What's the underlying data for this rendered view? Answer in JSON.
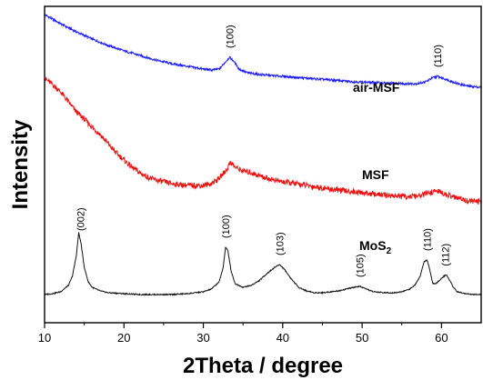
{
  "chart_data": {
    "type": "line",
    "title": "",
    "xlabel": "2Theta / degree",
    "ylabel": "Intensity",
    "xlim": [
      10,
      65
    ],
    "x_ticks": [
      "10",
      "20",
      "30",
      "40",
      "50",
      "60"
    ],
    "y_ticks_shown": false,
    "grid": false,
    "legend": "none (series labelled directly on plot)",
    "series": [
      {
        "name": "air-MSF",
        "color": "#1a1aff",
        "offset": 2.25,
        "x": [
          10,
          12,
          14,
          16,
          18,
          20,
          22,
          24,
          26,
          28,
          30,
          31,
          32,
          32.8,
          33.3,
          33.8,
          34.5,
          35.5,
          37,
          40,
          43,
          46,
          49,
          52,
          55,
          57,
          58,
          58.8,
          59.5,
          60.5,
          62,
          63.5,
          65
        ],
        "y": [
          0.85,
          0.75,
          0.66,
          0.58,
          0.51,
          0.45,
          0.4,
          0.35,
          0.31,
          0.28,
          0.25,
          0.24,
          0.25,
          0.33,
          0.38,
          0.34,
          0.25,
          0.21,
          0.19,
          0.17,
          0.15,
          0.13,
          0.11,
          0.1,
          0.09,
          0.09,
          0.11,
          0.15,
          0.17,
          0.14,
          0.09,
          0.06,
          0.05
        ]
      },
      {
        "name": "MSF",
        "color": "#ee1111",
        "offset": 1.0,
        "x": [
          10,
          11,
          12,
          13,
          14,
          15,
          16,
          17,
          18,
          19,
          20,
          21,
          22,
          23,
          24,
          25,
          26,
          27,
          28,
          29,
          30,
          31,
          32,
          33,
          33.4,
          34,
          35,
          36,
          38,
          40,
          43,
          46,
          49,
          52,
          55,
          57,
          58.5,
          59.5,
          60.5,
          62,
          63.5,
          65
        ],
        "y": [
          1.4,
          1.33,
          1.25,
          1.14,
          1.03,
          0.95,
          0.86,
          0.78,
          0.68,
          0.58,
          0.5,
          0.42,
          0.36,
          0.31,
          0.28,
          0.26,
          0.24,
          0.23,
          0.22,
          0.22,
          0.22,
          0.24,
          0.3,
          0.4,
          0.48,
          0.42,
          0.38,
          0.36,
          0.3,
          0.26,
          0.22,
          0.18,
          0.15,
          0.12,
          0.1,
          0.1,
          0.14,
          0.16,
          0.12,
          0.08,
          0.05,
          0.04
        ]
      },
      {
        "name": "MoS2",
        "color": "#111111",
        "offset": 0,
        "x": [
          10,
          11,
          12,
          13,
          13.5,
          14,
          14.3,
          14.6,
          15,
          15.5,
          16,
          17,
          18,
          20,
          22,
          24,
          26,
          28,
          30,
          31,
          32,
          32.5,
          32.8,
          33.1,
          33.5,
          34,
          35,
          36,
          37,
          38,
          39,
          39.6,
          40.2,
          41,
          42,
          43,
          44,
          45,
          46,
          47,
          48,
          49,
          49.7,
          50.5,
          51.5,
          53,
          54,
          55,
          56,
          56.7,
          57.3,
          57.8,
          58.2,
          58.5,
          58.9,
          59.3,
          59.8,
          60.3,
          60.6,
          61,
          61.5,
          62,
          63,
          64,
          65
        ],
        "y": [
          0.02,
          0.03,
          0.05,
          0.12,
          0.22,
          0.45,
          0.7,
          0.58,
          0.32,
          0.16,
          0.1,
          0.06,
          0.04,
          0.03,
          0.02,
          0.02,
          0.02,
          0.03,
          0.05,
          0.08,
          0.16,
          0.32,
          0.54,
          0.5,
          0.28,
          0.14,
          0.1,
          0.12,
          0.17,
          0.25,
          0.32,
          0.35,
          0.3,
          0.2,
          0.1,
          0.06,
          0.04,
          0.04,
          0.05,
          0.06,
          0.08,
          0.1,
          0.11,
          0.08,
          0.05,
          0.04,
          0.04,
          0.05,
          0.08,
          0.13,
          0.22,
          0.38,
          0.4,
          0.3,
          0.14,
          0.14,
          0.18,
          0.22,
          0.24,
          0.18,
          0.1,
          0.05,
          0.03,
          0.02,
          0.02
        ]
      }
    ],
    "annotations": [
      {
        "text": "(002)",
        "series": "MoS2",
        "x": 14.5
      },
      {
        "text": "(100)",
        "series": "MoS2",
        "x": 32.8
      },
      {
        "text": "(103)",
        "series": "MoS2",
        "x": 39.6
      },
      {
        "text": "(105)",
        "series": "MoS2",
        "x": 49.7
      },
      {
        "text": "(110)",
        "series": "MoS2",
        "x": 58.2
      },
      {
        "text": "(112)",
        "series": "MoS2",
        "x": 60.5
      },
      {
        "text": "(100)",
        "series": "air-MSF",
        "x": 33.3
      },
      {
        "text": "(110)",
        "series": "air-MSF",
        "x": 59.5
      }
    ],
    "series_labels": [
      {
        "main": "air-MSF",
        "sub": ""
      },
      {
        "main": "MSF",
        "sub": ""
      },
      {
        "main": "MoS",
        "sub": "2"
      }
    ]
  }
}
